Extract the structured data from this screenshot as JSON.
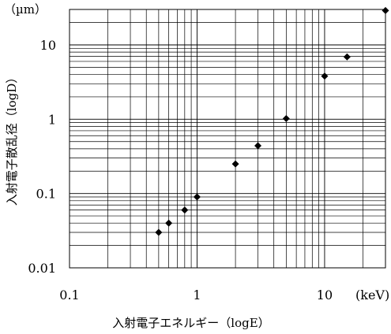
{
  "chart_data": {
    "type": "scatter",
    "title": "",
    "xlabel": "入射電子エネルギー（logE）",
    "ylabel": "入射電子散乱径（logD）",
    "x_unit": "(keV)",
    "y_unit": "（µm）",
    "x_scale": "log",
    "y_scale": "log",
    "xlim": [
      0.1,
      30
    ],
    "ylim": [
      0.01,
      30
    ],
    "x_ticks": [
      0.1,
      1,
      10
    ],
    "x_tick_labels": [
      "0.1",
      "1",
      "10"
    ],
    "y_ticks": [
      0.01,
      0.1,
      1,
      10
    ],
    "y_tick_labels": [
      "0.01",
      "0.1",
      "1",
      "10"
    ],
    "grid": true,
    "legend": "none",
    "marker": "diamond",
    "color": "#000000",
    "series": [
      {
        "x": [
          0.5,
          0.6,
          0.8,
          1,
          2,
          3,
          5,
          10,
          15,
          30
        ],
        "y": [
          0.03,
          0.04,
          0.06,
          0.09,
          0.25,
          0.44,
          1.02,
          3.8,
          6.9,
          29
        ]
      }
    ]
  }
}
